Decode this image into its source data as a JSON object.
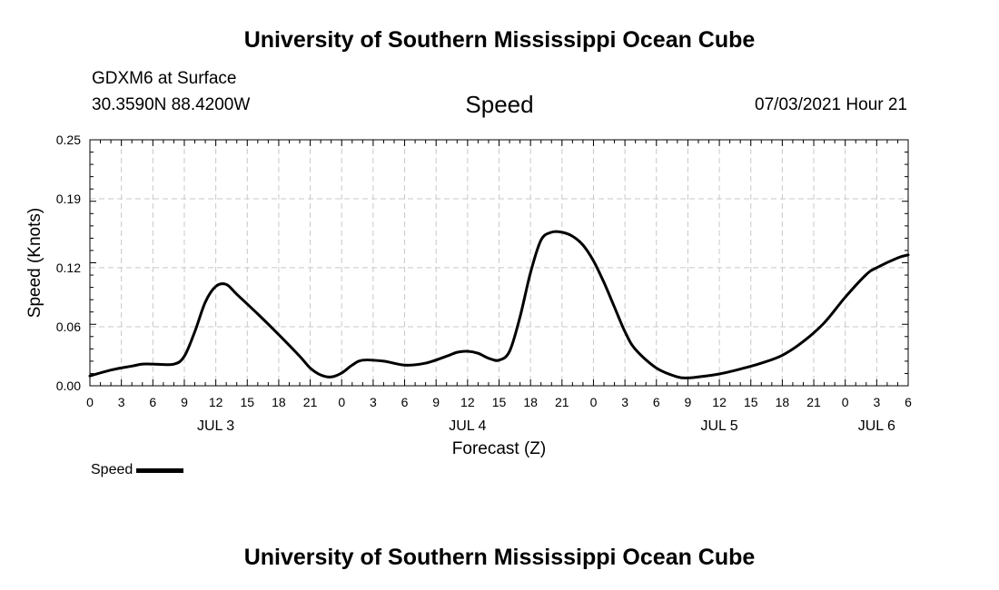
{
  "header": {
    "title": "University of Southern Mississippi Ocean Cube",
    "station": "GDXM6 at Surface",
    "coordinates": "30.3590N  88.4200W",
    "timestamp": "07/03/2021 Hour 21"
  },
  "footer": {
    "title": "University of Southern Mississippi Ocean Cube"
  },
  "legend": {
    "label": "Speed"
  },
  "chart_data": {
    "type": "line",
    "title": "Speed",
    "xlabel": "Forecast (Z)",
    "ylabel": "Speed (Knots)",
    "ylim": [
      0,
      0.25
    ],
    "yticks": [
      "0.00",
      "0.06",
      "0.12",
      "0.19",
      "0.25"
    ],
    "xlim": [
      0,
      78
    ],
    "x_unit": "hours from 00Z JUL 3",
    "xticks": [
      {
        "x": 0,
        "label": "0"
      },
      {
        "x": 3,
        "label": "3"
      },
      {
        "x": 6,
        "label": "6"
      },
      {
        "x": 9,
        "label": "9"
      },
      {
        "x": 12,
        "label": "12"
      },
      {
        "x": 15,
        "label": "15"
      },
      {
        "x": 18,
        "label": "18"
      },
      {
        "x": 21,
        "label": "21"
      },
      {
        "x": 24,
        "label": "0"
      },
      {
        "x": 27,
        "label": "3"
      },
      {
        "x": 30,
        "label": "6"
      },
      {
        "x": 33,
        "label": "9"
      },
      {
        "x": 36,
        "label": "12"
      },
      {
        "x": 39,
        "label": "15"
      },
      {
        "x": 42,
        "label": "18"
      },
      {
        "x": 45,
        "label": "21"
      },
      {
        "x": 48,
        "label": "0"
      },
      {
        "x": 51,
        "label": "3"
      },
      {
        "x": 54,
        "label": "6"
      },
      {
        "x": 57,
        "label": "9"
      },
      {
        "x": 60,
        "label": "12"
      },
      {
        "x": 63,
        "label": "15"
      },
      {
        "x": 66,
        "label": "18"
      },
      {
        "x": 69,
        "label": "21"
      },
      {
        "x": 72,
        "label": "0"
      },
      {
        "x": 75,
        "label": "3"
      },
      {
        "x": 78,
        "label": "6"
      }
    ],
    "date_labels": [
      {
        "x": 12,
        "label": "JUL 3"
      },
      {
        "x": 36,
        "label": "JUL 4"
      },
      {
        "x": 60,
        "label": "JUL 5"
      },
      {
        "x": 75,
        "label": "JUL 6"
      }
    ],
    "grid": true,
    "legend_position": "bottom-left",
    "series": [
      {
        "name": "Speed",
        "color": "#000000",
        "points": [
          [
            0,
            0.01
          ],
          [
            2,
            0.016
          ],
          [
            4,
            0.02
          ],
          [
            5,
            0.022
          ],
          [
            6,
            0.022
          ],
          [
            8,
            0.022
          ],
          [
            9,
            0.03
          ],
          [
            10,
            0.055
          ],
          [
            11,
            0.085
          ],
          [
            12,
            0.101
          ],
          [
            13,
            0.103
          ],
          [
            14,
            0.093
          ],
          [
            16,
            0.073
          ],
          [
            18,
            0.052
          ],
          [
            20,
            0.03
          ],
          [
            21,
            0.018
          ],
          [
            22,
            0.011
          ],
          [
            23,
            0.009
          ],
          [
            24,
            0.013
          ],
          [
            25,
            0.021
          ],
          [
            26,
            0.026
          ],
          [
            28,
            0.025
          ],
          [
            30,
            0.021
          ],
          [
            32,
            0.023
          ],
          [
            34,
            0.03
          ],
          [
            35,
            0.034
          ],
          [
            36,
            0.035
          ],
          [
            37,
            0.033
          ],
          [
            38,
            0.028
          ],
          [
            39,
            0.026
          ],
          [
            40,
            0.035
          ],
          [
            41,
            0.07
          ],
          [
            42,
            0.115
          ],
          [
            43,
            0.148
          ],
          [
            44,
            0.156
          ],
          [
            45,
            0.156
          ],
          [
            46,
            0.152
          ],
          [
            47,
            0.143
          ],
          [
            48,
            0.127
          ],
          [
            49,
            0.105
          ],
          [
            50,
            0.08
          ],
          [
            51,
            0.055
          ],
          [
            52,
            0.037
          ],
          [
            54,
            0.018
          ],
          [
            56,
            0.009
          ],
          [
            57,
            0.008
          ],
          [
            58,
            0.009
          ],
          [
            60,
            0.012
          ],
          [
            62,
            0.017
          ],
          [
            64,
            0.023
          ],
          [
            66,
            0.031
          ],
          [
            68,
            0.045
          ],
          [
            70,
            0.064
          ],
          [
            72,
            0.09
          ],
          [
            74,
            0.113
          ],
          [
            75,
            0.12
          ],
          [
            77,
            0.13
          ],
          [
            78,
            0.133
          ]
        ]
      }
    ]
  }
}
